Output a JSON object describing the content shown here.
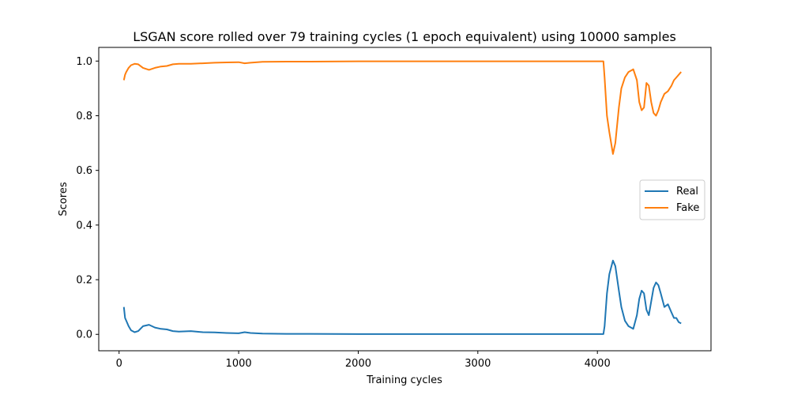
{
  "chart_data": {
    "type": "line",
    "title": "LSGAN score rolled over 79 training cycles (1 epoch equivalent) using 10000 samples",
    "xlabel": "Training cycles",
    "ylabel": "Scores",
    "xlim": [
      -170,
      4950
    ],
    "ylim": [
      -0.06,
      1.05
    ],
    "xticks": [
      0,
      1000,
      2000,
      3000,
      4000
    ],
    "yticks": [
      0.0,
      0.2,
      0.4,
      0.6,
      0.8,
      1.0
    ],
    "xtick_labels": [
      "0",
      "1000",
      "2000",
      "3000",
      "4000"
    ],
    "ytick_labels": [
      "0.0",
      "0.2",
      "0.4",
      "0.6",
      "0.8",
      "1.0"
    ],
    "grid": false,
    "legend": "center-right",
    "series": [
      {
        "name": "Real",
        "color": "#1f77b4",
        "x": [
          40,
          50,
          60,
          80,
          100,
          130,
          160,
          200,
          250,
          300,
          350,
          400,
          450,
          500,
          600,
          700,
          800,
          900,
          1000,
          1050,
          1100,
          1200,
          1400,
          1600,
          2000,
          2500,
          3000,
          3500,
          4000,
          4050,
          4060,
          4080,
          4100,
          4130,
          4150,
          4180,
          4200,
          4230,
          4260,
          4300,
          4330,
          4350,
          4370,
          4390,
          4410,
          4430,
          4450,
          4470,
          4490,
          4510,
          4530,
          4560,
          4590,
          4620,
          4640,
          4660,
          4680,
          4700
        ],
        "y": [
          0.1,
          0.06,
          0.05,
          0.03,
          0.015,
          0.008,
          0.012,
          0.03,
          0.035,
          0.025,
          0.02,
          0.018,
          0.012,
          0.01,
          0.012,
          0.008,
          0.007,
          0.005,
          0.004,
          0.008,
          0.005,
          0.003,
          0.002,
          0.002,
          0.001,
          0.001,
          0.001,
          0.001,
          0.001,
          0.001,
          0.03,
          0.15,
          0.22,
          0.27,
          0.25,
          0.16,
          0.1,
          0.05,
          0.03,
          0.02,
          0.07,
          0.13,
          0.16,
          0.15,
          0.09,
          0.07,
          0.12,
          0.17,
          0.19,
          0.18,
          0.15,
          0.1,
          0.11,
          0.08,
          0.06,
          0.06,
          0.045,
          0.04
        ]
      },
      {
        "name": "Fake",
        "color": "#ff7f0e",
        "x": [
          40,
          50,
          60,
          80,
          100,
          130,
          160,
          200,
          250,
          300,
          350,
          400,
          450,
          500,
          600,
          700,
          800,
          900,
          1000,
          1050,
          1100,
          1200,
          1400,
          1600,
          2000,
          2500,
          3000,
          3500,
          4000,
          4050,
          4060,
          4080,
          4100,
          4130,
          4150,
          4180,
          4200,
          4230,
          4260,
          4300,
          4330,
          4350,
          4370,
          4390,
          4410,
          4430,
          4450,
          4470,
          4490,
          4510,
          4530,
          4560,
          4590,
          4620,
          4640,
          4660,
          4680,
          4700
        ],
        "y": [
          0.93,
          0.95,
          0.96,
          0.975,
          0.985,
          0.99,
          0.988,
          0.975,
          0.968,
          0.975,
          0.98,
          0.982,
          0.988,
          0.99,
          0.99,
          0.992,
          0.994,
          0.995,
          0.996,
          0.992,
          0.994,
          0.997,
          0.998,
          0.998,
          0.999,
          0.999,
          0.999,
          0.999,
          0.999,
          0.999,
          0.94,
          0.8,
          0.74,
          0.66,
          0.7,
          0.83,
          0.9,
          0.94,
          0.96,
          0.97,
          0.93,
          0.85,
          0.82,
          0.83,
          0.92,
          0.91,
          0.85,
          0.81,
          0.8,
          0.82,
          0.85,
          0.88,
          0.89,
          0.91,
          0.93,
          0.94,
          0.95,
          0.96
        ]
      }
    ]
  }
}
